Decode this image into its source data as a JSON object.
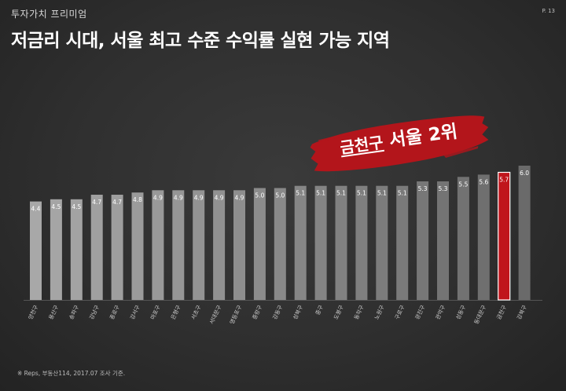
{
  "header": {
    "section_label": "투자가치 프리미엄",
    "page_number": "P. 13",
    "headline": "저금리 시대, 서울 최고 수준 수익률 실현 가능 지역"
  },
  "banner": {
    "highlight": "금천구",
    "text": " 서울 2위"
  },
  "footer": {
    "source_note": "※ Reps, 부동산114, 2017.07 조사 기준."
  },
  "colors": {
    "bar": "#a8a8a8",
    "bar_dark_end": "#6a6a6a",
    "highlight": "#c0151c",
    "banner_red": "#b3151b"
  },
  "chart_data": {
    "type": "bar",
    "categories": [
      "양천구",
      "용산구",
      "송파구",
      "강남구",
      "종로구",
      "강서구",
      "마포구",
      "은평구",
      "서초구",
      "서대문구",
      "영등포구",
      "중랑구",
      "강동구",
      "성북구",
      "중구",
      "도봉구",
      "동작구",
      "노원구",
      "구로구",
      "광진구",
      "관악구",
      "성동구",
      "동대문구",
      "금천구",
      "강북구"
    ],
    "values": [
      4.4,
      4.5,
      4.5,
      4.7,
      4.7,
      4.8,
      4.9,
      4.9,
      4.9,
      4.9,
      4.9,
      5.0,
      5.0,
      5.1,
      5.1,
      5.1,
      5.1,
      5.1,
      5.1,
      5.3,
      5.3,
      5.5,
      5.6,
      5.7,
      6.0
    ],
    "highlight_category": "금천구",
    "title": "",
    "xlabel": "",
    "ylabel": "",
    "ylim": [
      0,
      6.4
    ],
    "grid": false,
    "legend": "none"
  }
}
